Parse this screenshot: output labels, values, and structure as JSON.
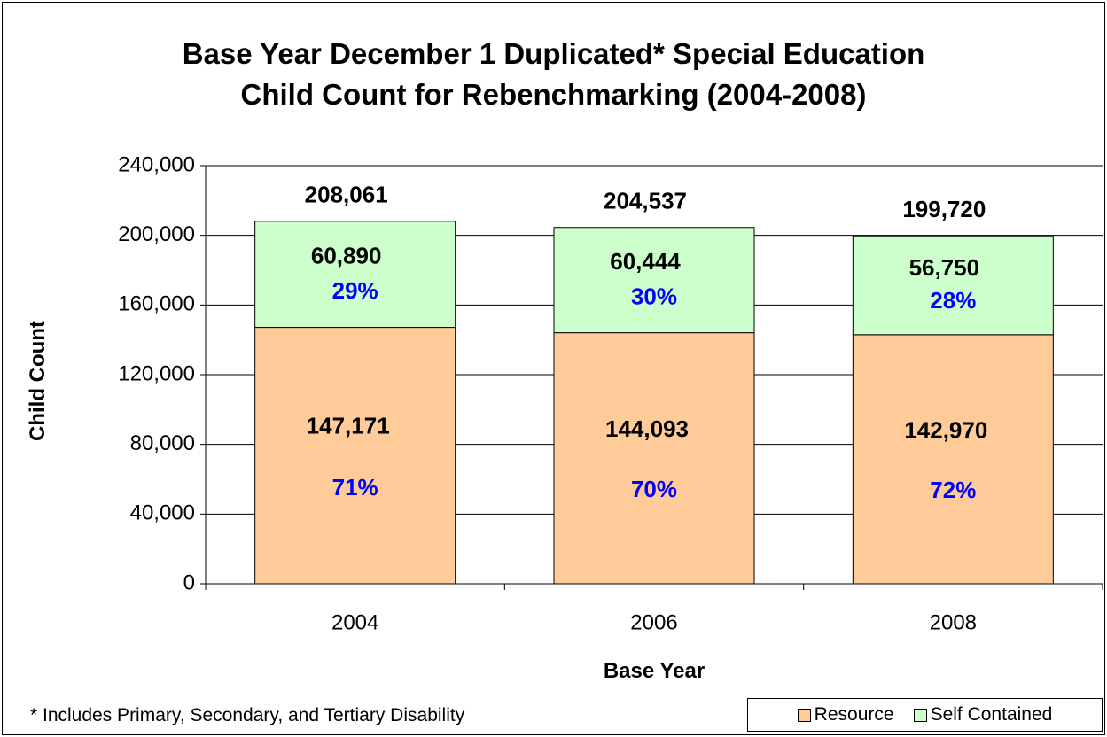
{
  "chart_data": {
    "type": "bar",
    "stacked": true,
    "title_lines": [
      "Base Year December 1 Duplicated* Special Education",
      "Child Count for Rebenchmarking (2004-2008)"
    ],
    "xlabel": "Base Year",
    "ylabel": "Child Count",
    "ylim": [
      0,
      240000
    ],
    "yticks": [
      "0",
      "40,000",
      "80,000",
      "120,000",
      "160,000",
      "200,000",
      "240,000"
    ],
    "categories": [
      "2004",
      "2006",
      "2008"
    ],
    "grid": true,
    "legend_position": "bottom-right",
    "series": [
      {
        "name": "Resource",
        "color": "#ffcc99",
        "values": [
          147171,
          144093,
          142970
        ],
        "value_labels": [
          "147,171",
          "144,093",
          "142,970"
        ],
        "percent_labels": [
          "71%",
          "70%",
          "72%"
        ]
      },
      {
        "name": "Self Contained",
        "color": "#ccffcc",
        "values": [
          60890,
          60444,
          56750
        ],
        "value_labels": [
          "60,890",
          "60,444",
          "56,750"
        ],
        "percent_labels": [
          "29%",
          "30%",
          "28%"
        ]
      }
    ],
    "totals": [
      208061,
      204537,
      199720
    ],
    "total_labels": [
      "208,061",
      "204,537",
      "199,720"
    ],
    "percent_color": "#0000ff",
    "footnote": "* Includes Primary, Secondary, and Tertiary Disability"
  }
}
